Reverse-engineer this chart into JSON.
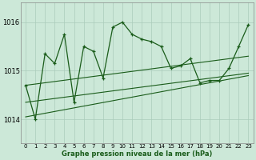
{
  "title": "Graphe pression niveau de la mer (hPa)",
  "bg_color": "#cce8d8",
  "grid_color": "#aaccbb",
  "line_color": "#1a5c1a",
  "x_ticks": [
    0,
    1,
    2,
    3,
    4,
    5,
    6,
    7,
    8,
    9,
    10,
    11,
    12,
    13,
    14,
    15,
    16,
    17,
    18,
    19,
    20,
    21,
    22,
    23
  ],
  "ylim": [
    1013.5,
    1016.4
  ],
  "yticks": [
    1014,
    1015,
    1016
  ],
  "main_series": [
    [
      0,
      1014.7
    ],
    [
      1,
      1014.0
    ],
    [
      2,
      1015.35
    ],
    [
      3,
      1015.15
    ],
    [
      4,
      1015.75
    ],
    [
      5,
      1014.35
    ],
    [
      6,
      1015.5
    ],
    [
      7,
      1015.4
    ],
    [
      8,
      1014.85
    ],
    [
      9,
      1015.9
    ],
    [
      10,
      1016.0
    ],
    [
      11,
      1015.75
    ],
    [
      12,
      1015.65
    ],
    [
      13,
      1015.6
    ],
    [
      14,
      1015.5
    ],
    [
      15,
      1015.05
    ],
    [
      16,
      1015.1
    ],
    [
      17,
      1015.25
    ],
    [
      18,
      1014.75
    ],
    [
      19,
      1014.8
    ],
    [
      20,
      1014.8
    ],
    [
      21,
      1015.05
    ],
    [
      22,
      1015.5
    ],
    [
      23,
      1015.95
    ]
  ],
  "envelope_lines": [
    {
      "x": [
        0,
        23
      ],
      "y": [
        1014.7,
        1015.3
      ]
    },
    {
      "x": [
        0,
        23
      ],
      "y": [
        1014.35,
        1014.95
      ]
    },
    {
      "x": [
        0,
        23
      ],
      "y": [
        1014.05,
        1014.9
      ]
    }
  ]
}
